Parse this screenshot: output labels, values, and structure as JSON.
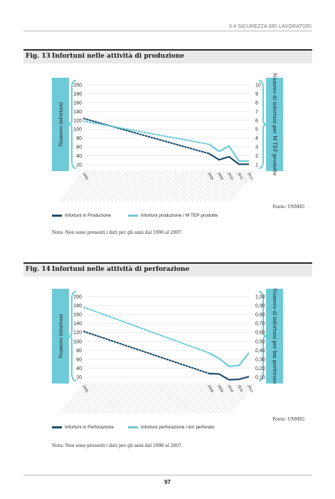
{
  "header": {
    "section": "3.4 SICUREZZA DEI LAVORATORI"
  },
  "figures": [
    {
      "number": "Fig. 13",
      "title": "Infortuni nelle attività di produzione",
      "source": "Fonte: UNMIG",
      "note": "Nota: Non sono presenti i dati per gli anni dal 1996 al 2007.",
      "legend": [
        "Infortuni in Produzione",
        "Infortuni produzione / M TEP prodotte"
      ]
    },
    {
      "number": "Fig. 14",
      "title": "Infortuni nelle attività di perforazione",
      "source": "Fonte: UNMIG",
      "note": "Nota: Non sono presenti i dati per gli anni dal 1996 al 2007.",
      "legend": [
        "Infortuni in Perforazione",
        "Infortuni perforazione / km perforato"
      ]
    }
  ],
  "page_number": "97",
  "colors": {
    "dark": "#1f4e6e",
    "light": "#6fcad8",
    "axis_panel": "#6fcad8"
  },
  "chart_data": [
    {
      "type": "line",
      "title": "Infortuni nelle attività di produzione",
      "categories": [
        "1995",
        "2008",
        "2009",
        "2010",
        "2011",
        "2012"
      ],
      "ylabel": "Numero infortuni",
      "y2label": "Numero di infortuni per M TEP prodotte",
      "ylim": [
        20,
        200
      ],
      "y2lim": [
        1,
        10
      ],
      "yticks": [
        "200",
        "180",
        "160",
        "140",
        "120",
        "100",
        "80",
        "60",
        "40",
        "20"
      ],
      "y2ticks": [
        "10",
        "9",
        "8",
        "7",
        "6",
        "5",
        "4",
        "3",
        "2",
        "1"
      ],
      "series": [
        {
          "name": "Infortuni in Produzione",
          "axis": "left",
          "color": "#1f4e6e",
          "values": [
            124,
            45,
            31,
            38,
            21,
            21
          ]
        },
        {
          "name": "Infortuni produzione / M TEP prodotte",
          "axis": "right",
          "color": "#6fcad8",
          "values": [
            5.9,
            3.3,
            2.5,
            3.1,
            1.4,
            1.4
          ]
        }
      ],
      "gap": {
        "from": "1995",
        "to": "2008",
        "style": "dotted"
      },
      "grid": true
    },
    {
      "type": "line",
      "title": "Infortuni nelle attività di perforazione",
      "categories": [
        "1995",
        "2008",
        "2009",
        "2010",
        "2011",
        "2012"
      ],
      "ylabel": "Numero infortuni",
      "y2label": "Numero di infortuni per km perforato",
      "ylim": [
        20,
        200
      ],
      "y2lim": [
        0.1,
        1.0
      ],
      "yticks": [
        "200",
        "180",
        "160",
        "140",
        "120",
        "100",
        "80",
        "60",
        "40",
        "20"
      ],
      "y2ticks": [
        "1,00",
        "0,90",
        "0,80",
        "0,70",
        "0,60",
        "0,50",
        "0,40",
        "0,30",
        "0,20",
        "0,10"
      ],
      "series": [
        {
          "name": "Infortuni in Perforazione",
          "axis": "left",
          "color": "#1f4e6e",
          "values": [
            122,
            28,
            27,
            14,
            15,
            21
          ]
        },
        {
          "name": "Infortuni perforazione / km perforato",
          "axis": "right",
          "color": "#6fcad8",
          "values": [
            0.88,
            0.37,
            0.31,
            0.22,
            0.23,
            0.37
          ]
        }
      ],
      "gap": {
        "from": "1995",
        "to": "2008",
        "style": "dotted"
      },
      "grid": true
    }
  ]
}
